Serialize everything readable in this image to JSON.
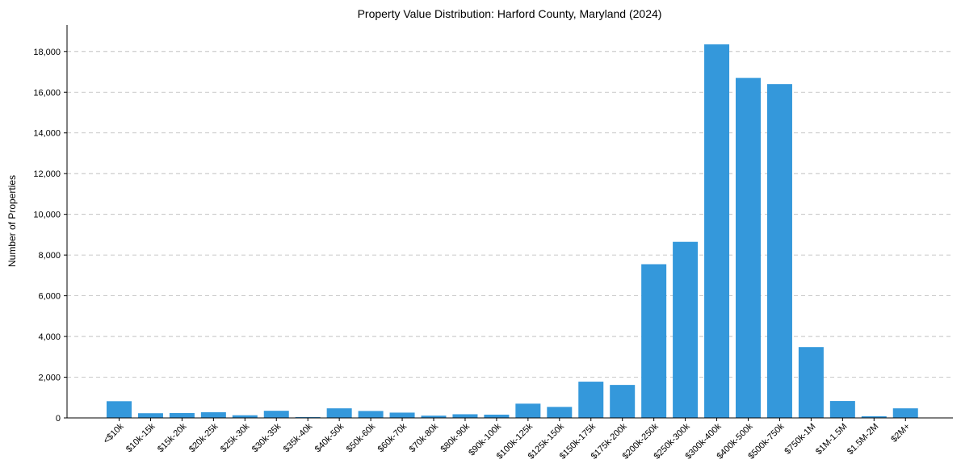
{
  "chart_data": {
    "type": "bar",
    "title": "Property Value Distribution: Harford County, Maryland (2024)",
    "xlabel": "",
    "ylabel": "Number of Properties",
    "ylim": [
      0,
      19300
    ],
    "yticks": [
      0,
      2000,
      4000,
      6000,
      8000,
      10000,
      12000,
      14000,
      16000,
      18000
    ],
    "ytick_labels": [
      "0",
      "2,000",
      "4,000",
      "6,000",
      "8,000",
      "10,000",
      "12,000",
      "14,000",
      "16,000",
      "18,000"
    ],
    "grid": "y-dashed",
    "bar_color": "#3498db",
    "categories": [
      "<$10k",
      "$10k-15k",
      "$15k-20k",
      "$20k-25k",
      "$25k-30k",
      "$30k-35k",
      "$35k-40k",
      "$40k-50k",
      "$50k-60k",
      "$60k-70k",
      "$70k-80k",
      "$80k-90k",
      "$90k-100k",
      "$100k-125k",
      "$125k-150k",
      "$150k-175k",
      "$175k-200k",
      "$200k-250k",
      "$250k-300k",
      "$300k-400k",
      "$400k-500k",
      "$500k-750k",
      "$750k-1M",
      "$1M-1.5M",
      "$1.5M-2M",
      "$2M+"
    ],
    "values": [
      820,
      230,
      240,
      280,
      130,
      350,
      40,
      470,
      340,
      260,
      110,
      180,
      160,
      700,
      540,
      1780,
      1620,
      7550,
      8650,
      18350,
      16700,
      16400,
      3480,
      830,
      80,
      470
    ]
  }
}
